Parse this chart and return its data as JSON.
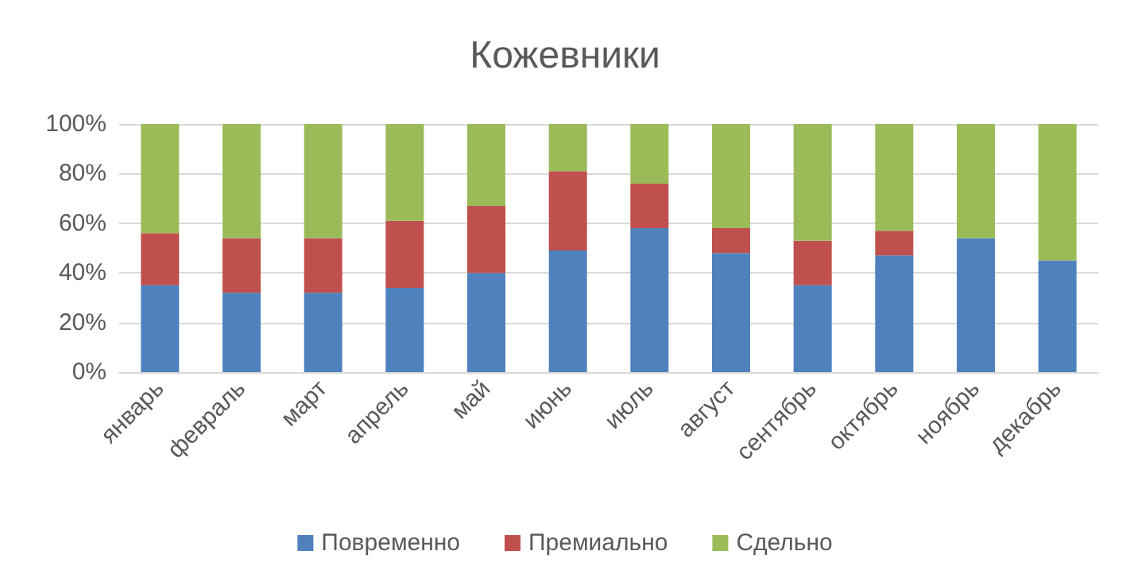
{
  "chart_data": {
    "type": "bar",
    "title": "Кожевники",
    "stacked": true,
    "categories": [
      "январь",
      "февраль",
      "март",
      "апрель",
      "май",
      "июнь",
      "июль",
      "август",
      "сентябрь",
      "октябрь",
      "ноябрь",
      "декабрь"
    ],
    "series": [
      {
        "name": "Повременно",
        "color": "#4f81bd",
        "values": [
          35,
          32,
          32,
          34,
          40,
          49,
          58,
          48,
          35,
          47,
          54,
          45
        ]
      },
      {
        "name": "Премиально",
        "color": "#c0504d",
        "values": [
          21,
          22,
          22,
          27,
          27,
          32,
          18,
          10,
          18,
          10,
          0,
          0
        ]
      },
      {
        "name": "Сдельно",
        "color": "#9bbb59",
        "values": [
          44,
          46,
          46,
          39,
          33,
          19,
          24,
          42,
          47,
          43,
          46,
          55
        ]
      }
    ],
    "ylim": [
      0,
      100
    ],
    "yticks": [
      {
        "value": 0,
        "label": "0%"
      },
      {
        "value": 20,
        "label": "20%"
      },
      {
        "value": 40,
        "label": "40%"
      },
      {
        "value": 60,
        "label": "60%"
      },
      {
        "value": 80,
        "label": "80%"
      },
      {
        "value": 100,
        "label": "100%"
      }
    ],
    "grid": "y",
    "legend": "bottom"
  }
}
